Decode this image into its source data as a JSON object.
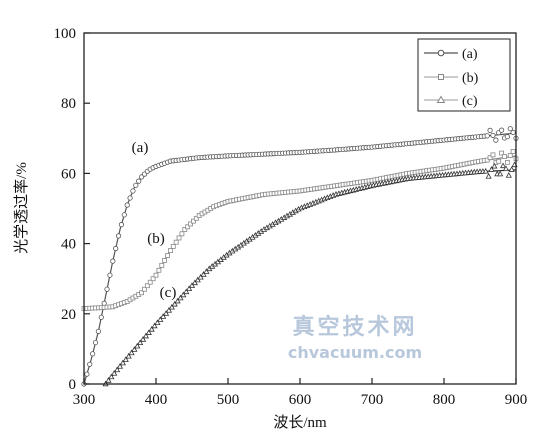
{
  "chart_data": {
    "type": "line",
    "xlabel": "波长/nm",
    "ylabel": "光学透过率/%",
    "xlim": [
      300,
      900
    ],
    "ylim": [
      0,
      100
    ],
    "xticks": [
      "300",
      "400",
      "500",
      "600",
      "700",
      "800",
      "900"
    ],
    "yticks": [
      "0",
      "20",
      "40",
      "60",
      "80",
      "100"
    ],
    "grid": false,
    "legend_position": "top-right",
    "series": [
      {
        "name": "(a)",
        "label": "(a)",
        "marker": "circle",
        "color": "#555555",
        "x": [
          300,
          310,
          320,
          330,
          340,
          350,
          360,
          370,
          380,
          390,
          400,
          420,
          440,
          460,
          500,
          550,
          600,
          650,
          700,
          750,
          800,
          850,
          900
        ],
        "y": [
          0,
          7,
          15,
          25,
          35,
          44,
          51,
          56,
          59,
          61,
          62,
          63.5,
          64,
          64.5,
          65,
          65.5,
          66,
          66.7,
          67.5,
          68.5,
          69.5,
          70.5,
          71.5
        ]
      },
      {
        "name": "(b)",
        "label": "(b)",
        "marker": "square",
        "color": "#888888",
        "x": [
          300,
          320,
          340,
          360,
          380,
          400,
          420,
          440,
          460,
          480,
          500,
          550,
          600,
          650,
          700,
          750,
          800,
          850,
          900
        ],
        "y": [
          21.5,
          21.7,
          22,
          23.5,
          26,
          31,
          38,
          44,
          48,
          50.5,
          52,
          54,
          55,
          56.5,
          58,
          60,
          61.5,
          63.5,
          65
        ]
      },
      {
        "name": "(c)",
        "label": "(c)",
        "marker": "triangle",
        "color": "#333333",
        "x": [
          330,
          350,
          375,
          400,
          425,
          450,
          475,
          500,
          550,
          600,
          650,
          700,
          750,
          800,
          850,
          900
        ],
        "y": [
          0,
          5,
          11,
          17,
          22.5,
          28,
          33,
          37,
          44,
          50,
          54,
          56.5,
          58.5,
          59.5,
          60.5,
          61
        ]
      }
    ]
  },
  "watermark": {
    "cn": "真空技术网",
    "en": "chvacuum.com"
  }
}
